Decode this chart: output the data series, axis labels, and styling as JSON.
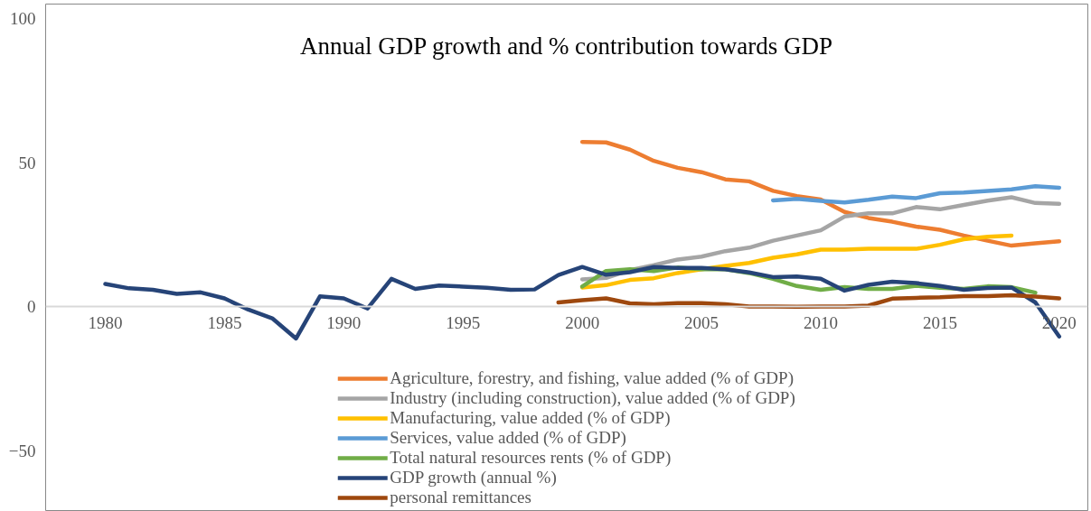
{
  "chart_data": {
    "type": "line",
    "title": "Annual GDP growth and % contribution towards GDP",
    "xlim": [
      1977.5,
      2021.2
    ],
    "xticks": [
      1980,
      1985,
      1990,
      1995,
      2000,
      2005,
      2010,
      2015,
      2020
    ],
    "ylim": [
      -71,
      105
    ],
    "yticks": [
      -50,
      0,
      50,
      100
    ],
    "grid": false,
    "legend": "bottom",
    "line_style": "solid",
    "series": [
      {
        "name": "Agriculture, forestry, and fishing, value added (% of GDP)",
        "color": "#ed7d31",
        "x": [
          2000,
          2001,
          2002,
          2003,
          2004,
          2005,
          2006,
          2007,
          2008,
          2009,
          2010,
          2011,
          2012,
          2013,
          2014,
          2015,
          2016,
          2017,
          2018,
          2019,
          2020
        ],
        "values": [
          57.2,
          57.0,
          54.5,
          50.6,
          48.2,
          46.7,
          44.2,
          43.5,
          40.2,
          38.4,
          37.2,
          32.9,
          30.8,
          29.5,
          27.8,
          26.7,
          24.7,
          22.9,
          21.2,
          22.0,
          22.7
        ]
      },
      {
        "name": "Industry (including construction), value added (% of GDP)",
        "color": "#a5a5a5",
        "x": [
          2000,
          2001,
          2002,
          2003,
          2004,
          2005,
          2006,
          2007,
          2008,
          2009,
          2010,
          2011,
          2012,
          2013,
          2014,
          2015,
          2016,
          2017,
          2018,
          2019,
          2020
        ],
        "values": [
          9.5,
          10.0,
          12.7,
          14.4,
          16.4,
          17.4,
          19.3,
          20.5,
          22.9,
          24.7,
          26.5,
          31.3,
          32.4,
          32.4,
          34.6,
          33.8,
          35.3,
          36.8,
          38.0,
          36.0,
          35.7
        ]
      },
      {
        "name": "Manufacturing, value added (% of GDP)",
        "color": "#ffc000",
        "x": [
          2000,
          2001,
          2002,
          2003,
          2004,
          2005,
          2006,
          2007,
          2008,
          2009,
          2010,
          2011,
          2012,
          2013,
          2014,
          2015,
          2016,
          2017,
          2018
        ],
        "values": [
          6.7,
          7.5,
          9.3,
          9.9,
          11.7,
          13.0,
          14.2,
          15.2,
          17.0,
          18.2,
          19.8,
          19.8,
          20.1,
          20.1,
          20.1,
          21.5,
          23.4,
          24.3,
          24.7
        ]
      },
      {
        "name": "Services, value added (% of GDP)",
        "color": "#5b9bd5",
        "x": [
          2008,
          2009,
          2010,
          2011,
          2012,
          2013,
          2014,
          2015,
          2016,
          2017,
          2018,
          2019,
          2020
        ],
        "values": [
          36.9,
          37.4,
          36.7,
          36.2,
          37.1,
          38.2,
          37.7,
          39.4,
          39.6,
          40.2,
          40.7,
          41.8,
          41.3
        ]
      },
      {
        "name": "Total natural resources rents (% of GDP)",
        "color": "#70ad47",
        "x": [
          2000,
          2001,
          2002,
          2003,
          2004,
          2005,
          2006,
          2007,
          2008,
          2009,
          2010,
          2011,
          2012,
          2013,
          2014,
          2015,
          2016,
          2017,
          2018,
          2019
        ],
        "values": [
          7.0,
          12.4,
          13.0,
          12.4,
          13.6,
          13.0,
          13.0,
          11.7,
          9.7,
          7.2,
          5.9,
          6.8,
          6.2,
          6.2,
          7.3,
          6.6,
          6.2,
          7.1,
          6.8,
          4.9
        ]
      },
      {
        "name": "GDP growth (annual %)",
        "color": "#264478",
        "x": [
          1980,
          1981,
          1982,
          1983,
          1984,
          1985,
          1986,
          1987,
          1988,
          1989,
          1990,
          1991,
          1992,
          1993,
          1994,
          1995,
          1996,
          1997,
          1998,
          1999,
          2000,
          2001,
          2002,
          2003,
          2004,
          2005,
          2006,
          2007,
          2008,
          2009,
          2010,
          2011,
          2012,
          2013,
          2014,
          2015,
          2016,
          2017,
          2018,
          2019,
          2020
        ],
        "values": [
          7.9,
          6.4,
          5.9,
          4.5,
          5.0,
          2.9,
          -1.0,
          -4.0,
          -11.0,
          3.6,
          2.9,
          -0.6,
          9.7,
          6.2,
          7.4,
          7.0,
          6.6,
          5.9,
          6.0,
          11.0,
          13.8,
          11.1,
          12.0,
          13.8,
          13.5,
          13.5,
          13.0,
          11.9,
          10.3,
          10.5,
          9.7,
          5.6,
          7.6,
          8.7,
          8.2,
          7.2,
          5.9,
          6.5,
          6.7,
          1.5,
          -10.3
        ]
      },
      {
        "name": "personal remittances",
        "color": "#9e480e",
        "x": [
          1999,
          2000,
          2001,
          2002,
          2003,
          2004,
          2005,
          2006,
          2007,
          2008,
          2009,
          2010,
          2011,
          2012,
          2013,
          2014,
          2015,
          2016,
          2017,
          2018,
          2019,
          2020
        ],
        "values": [
          1.5,
          2.3,
          2.9,
          1.2,
          0.9,
          1.3,
          1.3,
          0.9,
          0.1,
          0.1,
          0.0,
          0.1,
          0.1,
          0.4,
          2.8,
          3.1,
          3.3,
          3.7,
          3.7,
          4.0,
          3.5,
          2.9
        ]
      }
    ]
  }
}
